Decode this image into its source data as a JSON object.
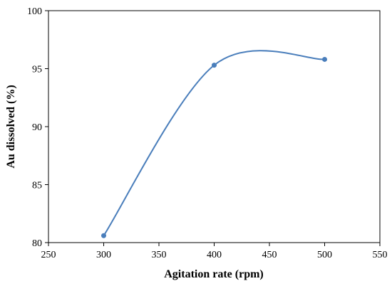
{
  "chart_data": {
    "type": "line",
    "title": "",
    "xlabel": "Agitation rate (rpm)",
    "ylabel": "Au dissolved (%)",
    "xlim": [
      250,
      550
    ],
    "ylim": [
      80,
      100
    ],
    "xticks": [
      250,
      300,
      350,
      400,
      450,
      500,
      550
    ],
    "yticks": [
      80,
      85,
      90,
      95,
      100
    ],
    "grid": false,
    "legend": "none",
    "smoothed": true,
    "color": "#4a7ebb",
    "series": [
      {
        "x": [
          300,
          400,
          500
        ],
        "values": [
          80.6,
          95.3,
          95.8
        ]
      }
    ]
  }
}
